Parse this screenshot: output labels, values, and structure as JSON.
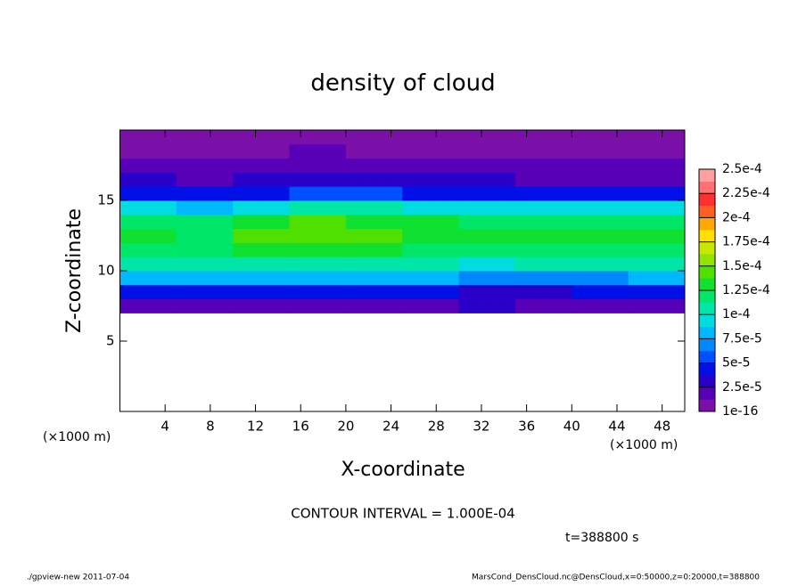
{
  "chart_data": {
    "type": "heatmap",
    "title": "density of cloud",
    "xlabel": "X-coordinate",
    "ylabel": "Z-coordinate",
    "xunit": "(×1000 m)",
    "xunit_right": "(×1000 m)",
    "note": "CONTOUR INTERVAL = 1.000E-04",
    "time": "t=388800 s",
    "footer_left": "./gpview-new   2011-07-04",
    "footer_right": "MarsCond_DensCloud.nc@DensCloud,x=0:50000,z=0:20000,t=388800",
    "xlim": [
      0,
      50
    ],
    "xticks": [
      4,
      8,
      12,
      16,
      20,
      24,
      28,
      32,
      36,
      40,
      44,
      48
    ],
    "ylim": [
      0,
      20
    ],
    "yticks": [
      5,
      10,
      15
    ],
    "x": [
      2.5,
      7.5,
      12.5,
      17.5,
      22.5,
      27.5,
      32.5,
      37.5,
      42.5,
      47.5
    ],
    "y": [
      7.5,
      8.5,
      9.5,
      10.5,
      11.5,
      12.5,
      13.5,
      14.5,
      15.5,
      16.5,
      17.5,
      18.5,
      19.5
    ],
    "z": [
      [
        2e-05,
        2e-05,
        2e-05,
        2e-05,
        2e-05,
        2e-05,
        3e-05,
        2e-05,
        2e-05,
        2e-05
      ],
      [
        4.5e-05,
        4e-05,
        4.5e-05,
        4.5e-05,
        4.5e-05,
        4e-05,
        3.5e-05,
        3.5e-05,
        4e-05,
        4.5e-05
      ],
      [
        8e-05,
        8.5e-05,
        8e-05,
        8e-05,
        8e-05,
        8e-05,
        7e-05,
        7e-05,
        7.5e-05,
        8e-05
      ],
      [
        0.00011,
        0.000105,
        0.00011,
        0.00011,
        0.00011,
        0.000105,
        0.0001,
        0.000105,
        0.00011,
        0.00011
      ],
      [
        0.000125,
        0.00012,
        0.00013,
        0.00013,
        0.00013,
        0.000125,
        0.00012,
        0.000125,
        0.000125,
        0.000125
      ],
      [
        0.00013,
        0.000125,
        0.00014,
        0.000145,
        0.00014,
        0.000135,
        0.00013,
        0.00013,
        0.00013,
        0.00013
      ],
      [
        0.00012,
        0.000115,
        0.000135,
        0.00014,
        0.000135,
        0.00013,
        0.000125,
        0.000125,
        0.00012,
        0.00012
      ],
      [
        9e-05,
        8e-05,
        0.0001,
        0.00011,
        0.000105,
        0.0001,
        9.5e-05,
        9.5e-05,
        9e-05,
        9e-05
      ],
      [
        5e-05,
        4e-05,
        5e-05,
        6e-05,
        5.5e-05,
        5e-05,
        5e-05,
        5e-05,
        4.5e-05,
        5e-05
      ],
      [
        3e-05,
        2.5e-05,
        3e-05,
        3.5e-05,
        3e-05,
        3e-05,
        3e-05,
        2.5e-05,
        2.5e-05,
        2.5e-05
      ],
      [
        2e-05,
        2e-05,
        1.5e-05,
        2e-05,
        2e-05,
        2e-05,
        1.5e-05,
        1.5e-05,
        1.5e-05,
        1.5e-05
      ],
      [
        1e-05,
        1e-05,
        1e-05,
        1.5e-05,
        1e-05,
        1e-05,
        1e-05,
        1e-05,
        1e-05,
        1e-05
      ],
      [
        5e-06,
        5e-06,
        5e-06,
        5e-06,
        5e-06,
        5e-06,
        5e-06,
        5e-06,
        5e-06,
        5e-06
      ]
    ],
    "colorbar_ticks": [
      {
        "value": 1e-16,
        "label": "1e-16"
      },
      {
        "value": 2.5e-05,
        "label": "2.5e-5"
      },
      {
        "value": 5e-05,
        "label": "5e-5"
      },
      {
        "value": 7.5e-05,
        "label": "7.5e-5"
      },
      {
        "value": 0.0001,
        "label": "1e-4"
      },
      {
        "value": 0.000125,
        "label": "1.25e-4"
      },
      {
        "value": 0.00015,
        "label": "1.5e-4"
      },
      {
        "value": 0.000175,
        "label": "1.75e-4"
      },
      {
        "value": 0.0002,
        "label": "2e-4"
      },
      {
        "value": 0.000225,
        "label": "2.25e-4"
      },
      {
        "value": 0.00025,
        "label": "2.5e-4"
      }
    ],
    "colors": [
      "#7a10a8",
      "#5800b8",
      "#2a00c8",
      "#0010e6",
      "#0050ff",
      "#0088ff",
      "#00b8ff",
      "#00dce0",
      "#00e6a8",
      "#00e668",
      "#10e030",
      "#50e000",
      "#90e400",
      "#c8e800",
      "#ffe000",
      "#ffa800",
      "#ff6020",
      "#ff3030",
      "#ff7070",
      "#ffa0a0"
    ]
  }
}
